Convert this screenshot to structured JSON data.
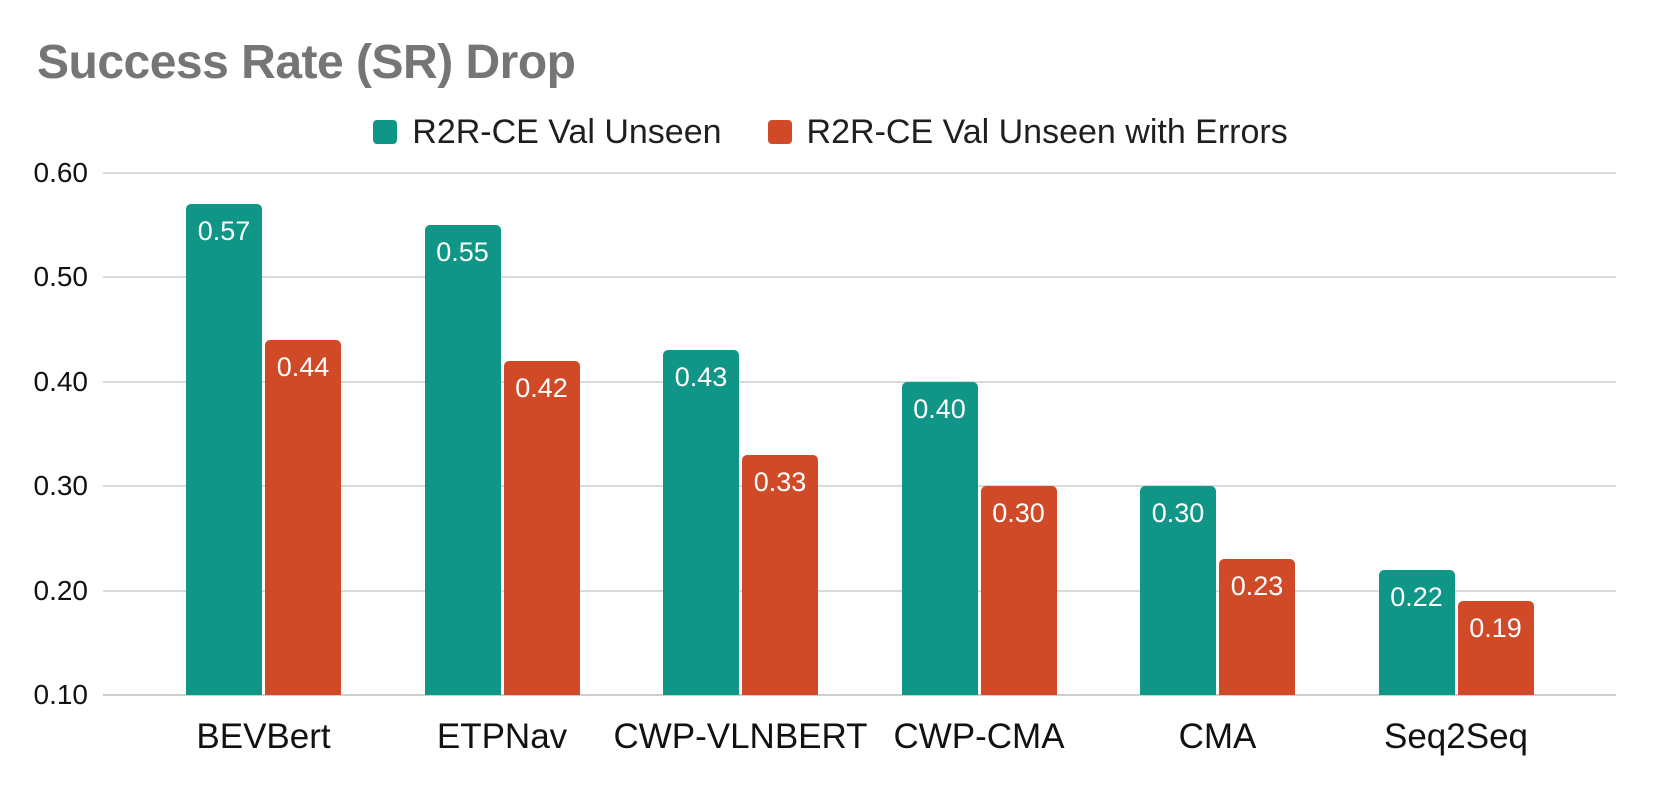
{
  "title": "Success Rate (SR) Drop",
  "legend": {
    "items": [
      {
        "label": "R2R-CE Val Unseen"
      },
      {
        "label": "R2R-CE Val Unseen with Errors"
      }
    ]
  },
  "colors": {
    "series_1": "#0f9687",
    "series_2": "#d14a28",
    "title_text": "#757575",
    "gridline": "#d9d9d9",
    "axis_text": "#111111",
    "value_label_text": "#ffffff",
    "background": "#ffffff"
  },
  "chart_data": {
    "type": "bar",
    "title": "Success Rate (SR) Drop",
    "categories": [
      "BEVBert",
      "ETPNav",
      "CWP-VLNBERT",
      "CWP-CMA",
      "CMA",
      "Seq2Seq"
    ],
    "series": [
      {
        "name": "R2R-CE Val Unseen",
        "color": "#0f9687",
        "values": [
          0.57,
          0.55,
          0.43,
          0.4,
          0.3,
          0.22
        ]
      },
      {
        "name": "R2R-CE Val Unseen with Errors",
        "color": "#d14a28",
        "values": [
          0.44,
          0.42,
          0.33,
          0.3,
          0.23,
          0.19
        ]
      }
    ],
    "xlabel": "",
    "ylabel": "",
    "ylim": [
      0.1,
      0.6
    ],
    "y_ticks": [
      0.6,
      0.5,
      0.4,
      0.3,
      0.2,
      0.1
    ],
    "y_tick_format": "0.00",
    "grid": true,
    "legend_position": "top-center",
    "value_labels": "inside-top",
    "value_label_format": "0.00"
  }
}
